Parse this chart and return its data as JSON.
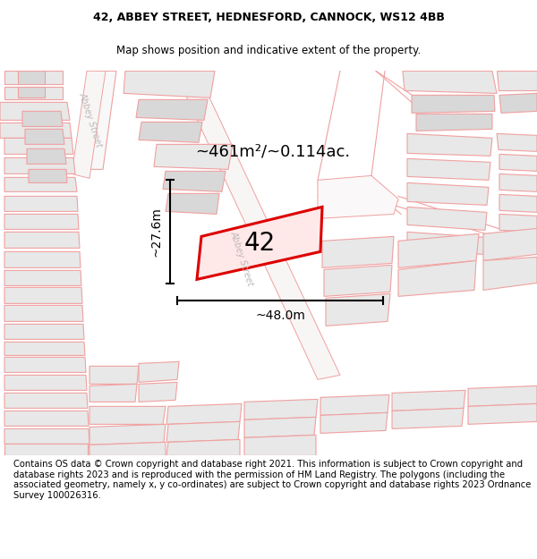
{
  "title_line1": "42, ABBEY STREET, HEDNESFORD, CANNOCK, WS12 4BB",
  "title_line2": "Map shows position and indicative extent of the property.",
  "footer_text": "Contains OS data © Crown copyright and database right 2021. This information is subject to Crown copyright and database rights 2023 and is reproduced with the permission of HM Land Registry. The polygons (including the associated geometry, namely x, y co-ordinates) are subject to Crown copyright and database rights 2023 Ordnance Survey 100026316.",
  "area_label": "~461m²/~0.114ac.",
  "property_number": "42",
  "dim_width": "~48.0m",
  "dim_height": "~27.6m",
  "map_bg": "#ffffff",
  "building_fill": "#e8e8e8",
  "building_edge": "#f0a0a0",
  "road_fill": "#ffffff",
  "road_edge": "#f0a0a0",
  "highlight_fill": "#ffe8e8",
  "highlight_edge": "#dd0000",
  "abbey_street_color": "#c0b8b8",
  "title_fontsize": 9.0,
  "subtitle_fontsize": 8.5,
  "footer_fontsize": 7.2,
  "label_fontsize": 13,
  "number_fontsize": 20,
  "dim_fontsize": 10,
  "street_fontsize": 7
}
